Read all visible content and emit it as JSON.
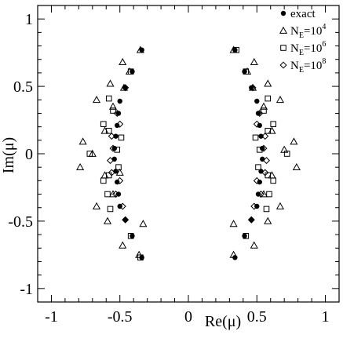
{
  "chart_data": {
    "type": "scatter",
    "xlabel": "Re(μ)",
    "ylabel": "Im(μ)",
    "xlim": [
      -1.1,
      1.1
    ],
    "ylim": [
      -1.1,
      1.1
    ],
    "xticks": [
      -1,
      -0.5,
      0,
      0.5,
      1
    ],
    "xtick_labels": [
      "-1",
      "-0.5",
      "0",
      "0.5",
      "1"
    ],
    "yticks": [
      -1,
      -0.5,
      0,
      0.5,
      1
    ],
    "ytick_labels": [
      "-1",
      "-0.5",
      "0",
      "0.5",
      "1"
    ],
    "grid": false,
    "legend_position": "top-right",
    "series": [
      {
        "name": "exact",
        "marker": "filled-circle",
        "points": [
          [
            0.34,
            0.77
          ],
          [
            0.41,
            0.61
          ],
          [
            0.46,
            0.49
          ],
          [
            0.5,
            0.39
          ],
          [
            0.51,
            0.3
          ],
          [
            0.52,
            0.21
          ],
          [
            0.53,
            0.13
          ],
          [
            0.54,
            0.04
          ],
          [
            0.34,
            -0.77
          ],
          [
            0.41,
            -0.61
          ],
          [
            0.46,
            -0.49
          ],
          [
            0.5,
            -0.39
          ],
          [
            0.51,
            -0.3
          ],
          [
            0.52,
            -0.21
          ],
          [
            0.53,
            -0.13
          ],
          [
            0.54,
            -0.04
          ],
          [
            -0.34,
            0.77
          ],
          [
            -0.41,
            0.61
          ],
          [
            -0.46,
            0.49
          ],
          [
            -0.5,
            0.39
          ],
          [
            -0.51,
            0.3
          ],
          [
            -0.52,
            0.21
          ],
          [
            -0.53,
            0.13
          ],
          [
            -0.54,
            0.04
          ],
          [
            -0.34,
            -0.77
          ],
          [
            -0.41,
            -0.61
          ],
          [
            -0.46,
            -0.49
          ],
          [
            -0.5,
            -0.39
          ],
          [
            -0.51,
            -0.3
          ],
          [
            -0.52,
            -0.21
          ],
          [
            -0.53,
            -0.13
          ],
          [
            -0.54,
            -0.04
          ]
        ]
      },
      {
        "name": "N_E=10^4",
        "marker": "open-triangle",
        "points": [
          [
            0.33,
            0.77
          ],
          [
            0.48,
            0.68
          ],
          [
            0.43,
            0.61
          ],
          [
            0.58,
            0.52
          ],
          [
            0.47,
            0.49
          ],
          [
            0.67,
            0.4
          ],
          [
            0.61,
            0.17
          ],
          [
            0.77,
            0.09
          ],
          [
            0.79,
            -0.1
          ],
          [
            0.61,
            -0.16
          ],
          [
            0.67,
            -0.39
          ],
          [
            0.58,
            -0.5
          ],
          [
            0.33,
            -0.52
          ],
          [
            0.48,
            -0.68
          ],
          [
            0.33,
            -0.75
          ],
          [
            -0.35,
            0.77
          ],
          [
            -0.48,
            0.68
          ],
          [
            -0.43,
            0.61
          ],
          [
            -0.57,
            0.52
          ],
          [
            -0.47,
            0.49
          ],
          [
            -0.67,
            0.4
          ],
          [
            -0.61,
            0.17
          ],
          [
            -0.77,
            0.09
          ],
          [
            -0.79,
            -0.1
          ],
          [
            -0.61,
            -0.16
          ],
          [
            -0.67,
            -0.39
          ],
          [
            -0.59,
            -0.5
          ],
          [
            -0.33,
            -0.52
          ],
          [
            -0.48,
            -0.68
          ],
          [
            -0.36,
            -0.75
          ],
          [
            0.55,
            0.35
          ],
          [
            0.55,
            -0.3
          ],
          [
            -0.55,
            0.35
          ],
          [
            -0.55,
            -0.3
          ],
          [
            -0.7,
            0.0
          ],
          [
            0.7,
            0.03
          ],
          [
            -0.5,
            -0.14
          ]
        ]
      },
      {
        "name": "N_E=10^6",
        "marker": "open-square",
        "points": [
          [
            0.42,
            0.61
          ],
          [
            0.58,
            0.41
          ],
          [
            0.55,
            0.32
          ],
          [
            0.62,
            0.22
          ],
          [
            0.58,
            0.17
          ],
          [
            0.72,
            0.0
          ],
          [
            0.52,
            0.03
          ],
          [
            0.62,
            -0.2
          ],
          [
            0.58,
            -0.16
          ],
          [
            0.59,
            -0.3
          ],
          [
            0.57,
            -0.41
          ],
          [
            0.42,
            -0.61
          ],
          [
            0.49,
            0.12
          ],
          [
            0.51,
            -0.1
          ],
          [
            -0.42,
            0.61
          ],
          [
            -0.58,
            0.41
          ],
          [
            -0.55,
            0.32
          ],
          [
            -0.62,
            0.22
          ],
          [
            -0.58,
            0.17
          ],
          [
            -0.72,
            0.0
          ],
          [
            -0.52,
            0.03
          ],
          [
            -0.62,
            -0.2
          ],
          [
            -0.58,
            -0.16
          ],
          [
            -0.59,
            -0.3
          ],
          [
            -0.57,
            -0.41
          ],
          [
            -0.42,
            -0.61
          ],
          [
            -0.49,
            0.12
          ],
          [
            -0.51,
            -0.1
          ],
          [
            0.35,
            0.77
          ],
          [
            -0.35,
            -0.77
          ]
        ]
      },
      {
        "name": "N_E=10^8",
        "marker": "open-diamond",
        "points": [
          [
            0.47,
            0.49
          ],
          [
            0.52,
            0.3
          ],
          [
            0.5,
            0.22
          ],
          [
            0.56,
            0.13
          ],
          [
            0.55,
            0.04
          ],
          [
            0.57,
            -0.05
          ],
          [
            0.56,
            -0.14
          ],
          [
            0.5,
            -0.2
          ],
          [
            0.53,
            -0.3
          ],
          [
            0.48,
            -0.39
          ],
          [
            0.46,
            -0.49
          ],
          [
            -0.46,
            0.49
          ],
          [
            -0.52,
            0.3
          ],
          [
            -0.5,
            0.22
          ],
          [
            -0.56,
            0.13
          ],
          [
            -0.55,
            0.04
          ],
          [
            -0.57,
            -0.05
          ],
          [
            -0.56,
            -0.14
          ],
          [
            -0.5,
            -0.2
          ],
          [
            -0.53,
            -0.3
          ],
          [
            -0.48,
            -0.39
          ],
          [
            -0.46,
            -0.49
          ]
        ]
      }
    ],
    "legend": [
      {
        "marker": "filled-circle",
        "base": "exact",
        "sub": "",
        "sup": ""
      },
      {
        "marker": "open-triangle",
        "base": "N",
        "sub": "E",
        "sup": "4",
        "mid": "=10"
      },
      {
        "marker": "open-square",
        "base": "N",
        "sub": "E",
        "sup": "6",
        "mid": "=10"
      },
      {
        "marker": "open-diamond",
        "base": "N",
        "sub": "E",
        "sup": "8",
        "mid": "=10"
      }
    ]
  }
}
